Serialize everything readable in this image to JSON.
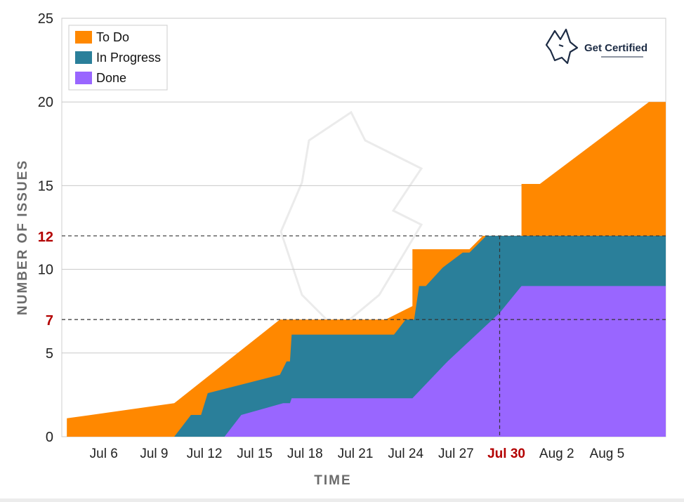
{
  "chart_data": {
    "type": "area",
    "stacked": true,
    "xlabel": "TIME",
    "ylabel": "NUMBER OF ISSUES",
    "ylim": [
      0,
      25
    ],
    "xlim": [
      3.5,
      39.5
    ],
    "y_ticks": [
      0,
      5,
      10,
      15,
      20,
      25
    ],
    "x_ticks": [
      {
        "label": "Jul 6",
        "day": 6
      },
      {
        "label": "Jul 9",
        "day": 9
      },
      {
        "label": "Jul 12",
        "day": 12
      },
      {
        "label": "Jul 15",
        "day": 15
      },
      {
        "label": "Jul 18",
        "day": 18
      },
      {
        "label": "Jul 21",
        "day": 21
      },
      {
        "label": "Jul 24",
        "day": 24
      },
      {
        "label": "Jul 27",
        "day": 27
      },
      {
        "label": "Jul 30",
        "day": 30,
        "highlight": true
      },
      {
        "label": "Aug 2",
        "day": 33
      },
      {
        "label": "Aug 5",
        "day": 36
      }
    ],
    "reference_lines": [
      {
        "axis": "y",
        "value": 12,
        "label": "12",
        "x_end": 39.5
      },
      {
        "axis": "y",
        "value": 7,
        "label": "7",
        "x_end": 39.5
      },
      {
        "axis": "x",
        "value": 29.6,
        "y_end": 12
      }
    ],
    "series": [
      {
        "name": "Done",
        "color": "#9966ff",
        "points": [
          [
            3.8,
            0
          ],
          [
            13.2,
            0
          ],
          [
            14.2,
            1.3
          ],
          [
            16.7,
            2
          ],
          [
            17.1,
            2
          ],
          [
            17.2,
            2.3
          ],
          [
            24.4,
            2.3
          ],
          [
            26.5,
            4.5
          ],
          [
            29.6,
            7.4
          ],
          [
            30.9,
            9
          ],
          [
            39.5,
            9
          ]
        ]
      },
      {
        "name": "In Progress",
        "color": "#2a7f9a",
        "points": [
          [
            3.8,
            0
          ],
          [
            10.2,
            0
          ],
          [
            11.2,
            1.3
          ],
          [
            11.8,
            1.3
          ],
          [
            12.2,
            2.6
          ],
          [
            16.5,
            3.7
          ],
          [
            16.9,
            4.5
          ],
          [
            17.1,
            4.5
          ],
          [
            17.2,
            6.1
          ],
          [
            23.3,
            6.1
          ],
          [
            24.0,
            7
          ],
          [
            24.5,
            7
          ],
          [
            24.8,
            9
          ],
          [
            25.2,
            9
          ],
          [
            26.2,
            10.1
          ],
          [
            27.4,
            11
          ],
          [
            27.8,
            11
          ],
          [
            28.8,
            12
          ],
          [
            39.5,
            12
          ]
        ]
      },
      {
        "name": "To Do",
        "color": "#ff8800",
        "points": [
          [
            3.8,
            1.1
          ],
          [
            10.2,
            2
          ],
          [
            16.5,
            7
          ],
          [
            22.8,
            7
          ],
          [
            24.0,
            7.6
          ],
          [
            24.4,
            7.8
          ],
          [
            24.4,
            11.2
          ],
          [
            27.8,
            11.2
          ],
          [
            28.6,
            12
          ],
          [
            30.9,
            12
          ],
          [
            30.9,
            15.1
          ],
          [
            32.0,
            15.1
          ],
          [
            38.5,
            20
          ],
          [
            39.5,
            20
          ]
        ]
      }
    ],
    "legend": {
      "position": "top-left",
      "order": [
        "To Do",
        "In Progress",
        "Done"
      ]
    }
  },
  "brand": {
    "text": "Get Certified",
    "icon": "wolf-logo-icon"
  },
  "colors": {
    "todo": "#ff8800",
    "in_progress": "#2a7f9a",
    "done": "#9966ff",
    "highlight": "#b30000"
  }
}
